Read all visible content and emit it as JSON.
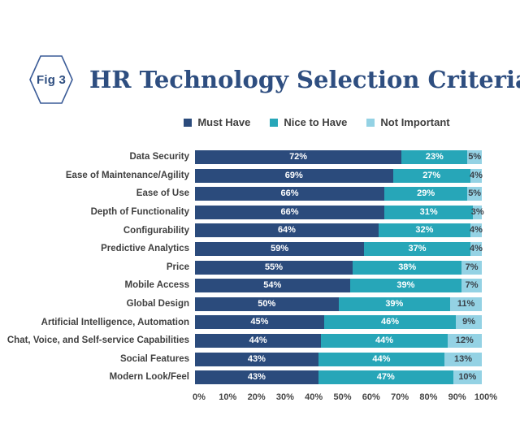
{
  "figure": {
    "fig_label": "Fig 3",
    "title": "HR Technology Selection Criteria"
  },
  "colors": {
    "navy": "#2B4B7C",
    "teal": "#27A6B8",
    "light_blue": "#94D2E4",
    "title_navy": "#2E4E80",
    "hexagon_border": "#3A5B97",
    "hexagon_text": "#2E4E80",
    "category_text": "#404040",
    "legend_text": "#3F3F3F",
    "axis_text": "#454545",
    "bar_label_light": "#FFFFFF",
    "bar_label_dark": "#3A4149"
  },
  "chart_data": {
    "type": "bar",
    "stacked": true,
    "orientation": "horizontal",
    "title": "HR Technology Selection Criteria",
    "legend_position": "top",
    "value_suffix": "%",
    "categories": [
      "Data Security",
      "Ease of Maintenance/Agility",
      "Ease of Use",
      "Depth of Functionality",
      "Configurability",
      "Predictive Analytics",
      "Price",
      "Mobile Access",
      "Global Design",
      "Artificial Intelligence, Automation",
      "Chat, Voice, and Self-service Capabilities",
      "Social Features",
      "Modern Look/Feel"
    ],
    "series": [
      {
        "name": "Must Have",
        "color": "#2B4B7C",
        "label_color": "#FFFFFF",
        "values": [
          72,
          69,
          66,
          66,
          64,
          59,
          55,
          54,
          50,
          45,
          44,
          43,
          43
        ]
      },
      {
        "name": "Nice to Have",
        "color": "#27A6B8",
        "label_color": "#FFFFFF",
        "values": [
          23,
          27,
          29,
          31,
          32,
          37,
          38,
          39,
          39,
          46,
          44,
          44,
          47
        ]
      },
      {
        "name": "Not Important",
        "color": "#94D2E4",
        "label_color": "#3A4149",
        "values": [
          5,
          4,
          5,
          3,
          4,
          4,
          7,
          7,
          11,
          9,
          12,
          13,
          10
        ]
      }
    ],
    "x_axis": {
      "min": 0,
      "max": 100,
      "tick_step": 10,
      "ticks": [
        "0%",
        "10%",
        "20%",
        "30%",
        "40%",
        "50%",
        "60%",
        "70%",
        "80%",
        "90%",
        "100%"
      ]
    }
  }
}
